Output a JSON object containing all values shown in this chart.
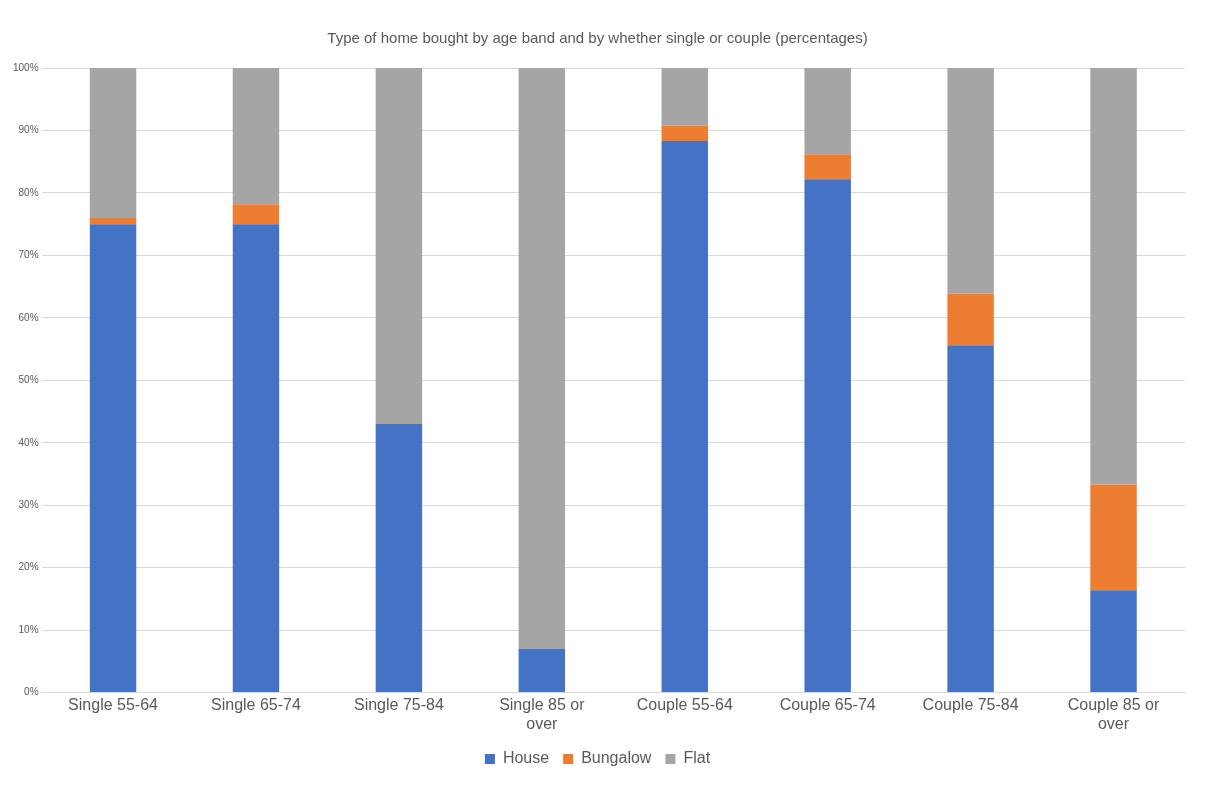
{
  "chart_data": {
    "type": "bar",
    "stacked": true,
    "title": "Type of home bought by age band and by whether single or couple (percentages)",
    "categories": [
      "Single 55-64",
      "Single 65-74",
      "Single 75-84",
      "Single 85 or over",
      "Couple 55-64",
      "Couple 65-74",
      "Couple 75-84",
      "Couple 85 or over"
    ],
    "series": [
      {
        "name": "House",
        "color": "#4472c4",
        "values": [
          75,
          75,
          43,
          7,
          88.3,
          82.2,
          55.6,
          16.4
        ]
      },
      {
        "name": "Bungalow",
        "color": "#ed7d31",
        "values": [
          1,
          3.2,
          0,
          0,
          2.5,
          4,
          8.3,
          16.9
        ]
      },
      {
        "name": "Flat",
        "color": "#a5a5a5",
        "values": [
          24,
          21.8,
          57,
          93,
          9.2,
          13.8,
          36.1,
          66.7
        ]
      }
    ],
    "ylim": [
      0,
      100
    ],
    "yticks": [
      {
        "value": 0,
        "label": "0%"
      },
      {
        "value": 10,
        "label": "10%"
      },
      {
        "value": 20,
        "label": "20%"
      },
      {
        "value": 30,
        "label": "30%"
      },
      {
        "value": 40,
        "label": "40%"
      },
      {
        "value": 50,
        "label": "50%"
      },
      {
        "value": 60,
        "label": "60%"
      },
      {
        "value": 70,
        "label": "70%"
      },
      {
        "value": 80,
        "label": "80%"
      },
      {
        "value": 90,
        "label": "90%"
      },
      {
        "value": 100,
        "label": "100%"
      }
    ],
    "grid": "y",
    "legend": "bottom"
  }
}
